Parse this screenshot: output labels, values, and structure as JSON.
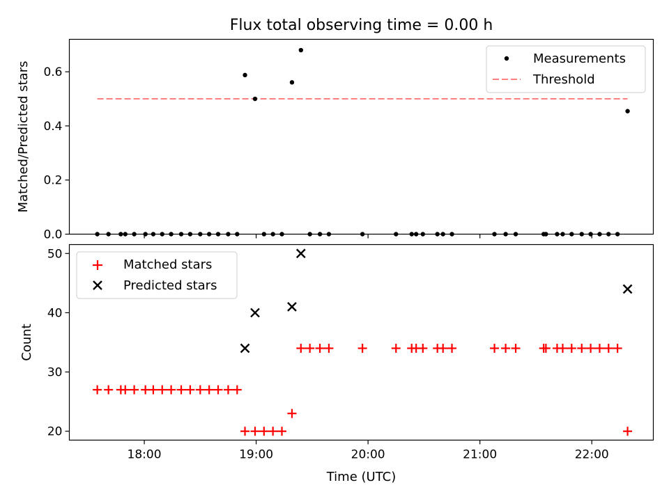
{
  "chart_data": [
    {
      "type": "scatter",
      "title": "Flux total observing time = 0.00 h",
      "ylabel": "Matched/Predicted stars",
      "xlabel": "",
      "xlim_hours": [
        17.33,
        22.55
      ],
      "ylim": [
        0.0,
        0.72
      ],
      "yticks": [
        0.0,
        0.2,
        0.4,
        0.6
      ],
      "ytick_labels": [
        "0.0",
        "0.2",
        "0.4",
        "0.6"
      ],
      "legend_position": "top-right",
      "series": [
        {
          "name": "Measurements",
          "kind": "scatter",
          "color": "#000000",
          "marker": "dot",
          "points": [
            [
              17.58,
              0
            ],
            [
              17.68,
              0
            ],
            [
              17.79,
              0
            ],
            [
              17.83,
              0
            ],
            [
              17.91,
              0
            ],
            [
              18.01,
              0
            ],
            [
              18.08,
              0
            ],
            [
              18.16,
              0
            ],
            [
              18.24,
              0
            ],
            [
              18.33,
              0
            ],
            [
              18.41,
              0
            ],
            [
              18.5,
              0
            ],
            [
              18.58,
              0
            ],
            [
              18.66,
              0
            ],
            [
              18.75,
              0
            ],
            [
              18.83,
              0
            ],
            [
              18.9,
              0.588
            ],
            [
              18.99,
              0.5
            ],
            [
              19.07,
              0
            ],
            [
              19.15,
              0
            ],
            [
              19.23,
              0
            ],
            [
              19.32,
              0.561
            ],
            [
              19.4,
              0.68
            ],
            [
              19.48,
              0
            ],
            [
              19.57,
              0
            ],
            [
              19.65,
              0
            ],
            [
              19.95,
              0
            ],
            [
              20.25,
              0
            ],
            [
              20.39,
              0
            ],
            [
              20.43,
              0
            ],
            [
              20.49,
              0
            ],
            [
              20.62,
              0
            ],
            [
              20.67,
              0
            ],
            [
              20.75,
              0
            ],
            [
              21.13,
              0
            ],
            [
              21.23,
              0
            ],
            [
              21.32,
              0
            ],
            [
              21.57,
              0
            ],
            [
              21.59,
              0
            ],
            [
              21.69,
              0
            ],
            [
              21.74,
              0
            ],
            [
              21.82,
              0
            ],
            [
              21.91,
              0
            ],
            [
              21.99,
              0
            ],
            [
              22.07,
              0
            ],
            [
              22.15,
              0
            ],
            [
              22.23,
              0
            ],
            [
              22.32,
              0.4545
            ]
          ]
        },
        {
          "name": "Threshold",
          "kind": "line",
          "style": "dashed",
          "color": "#ff7f7f",
          "x": [
            17.58,
            22.32
          ],
          "y": [
            0.5,
            0.5
          ]
        }
      ]
    },
    {
      "type": "scatter",
      "title": "",
      "ylabel": "Count",
      "xlabel": "Time (UTC)",
      "xlim_hours": [
        17.33,
        22.55
      ],
      "ylim": [
        18.5,
        51.5
      ],
      "yticks": [
        20,
        30,
        40,
        50
      ],
      "ytick_labels": [
        "20",
        "30",
        "40",
        "50"
      ],
      "xticks_hours": [
        18,
        19,
        20,
        21,
        22
      ],
      "xtick_labels": [
        "18:00",
        "19:00",
        "20:00",
        "21:00",
        "22:00"
      ],
      "legend_position": "top-left",
      "series": [
        {
          "name": "Matched stars",
          "kind": "scatter",
          "color": "#ff0000",
          "marker": "plus",
          "points": [
            [
              17.58,
              27
            ],
            [
              17.68,
              27
            ],
            [
              17.79,
              27
            ],
            [
              17.83,
              27
            ],
            [
              17.91,
              27
            ],
            [
              18.01,
              27
            ],
            [
              18.08,
              27
            ],
            [
              18.16,
              27
            ],
            [
              18.24,
              27
            ],
            [
              18.33,
              27
            ],
            [
              18.41,
              27
            ],
            [
              18.5,
              27
            ],
            [
              18.58,
              27
            ],
            [
              18.66,
              27
            ],
            [
              18.75,
              27
            ],
            [
              18.83,
              27
            ],
            [
              18.9,
              20
            ],
            [
              18.99,
              20
            ],
            [
              19.07,
              20
            ],
            [
              19.15,
              20
            ],
            [
              19.23,
              20
            ],
            [
              19.32,
              23
            ],
            [
              19.4,
              34
            ],
            [
              19.48,
              34
            ],
            [
              19.57,
              34
            ],
            [
              19.65,
              34
            ],
            [
              19.95,
              34
            ],
            [
              20.25,
              34
            ],
            [
              20.39,
              34
            ],
            [
              20.43,
              34
            ],
            [
              20.49,
              34
            ],
            [
              20.62,
              34
            ],
            [
              20.67,
              34
            ],
            [
              20.75,
              34
            ],
            [
              21.13,
              34
            ],
            [
              21.23,
              34
            ],
            [
              21.32,
              34
            ],
            [
              21.57,
              34
            ],
            [
              21.59,
              34
            ],
            [
              21.69,
              34
            ],
            [
              21.74,
              34
            ],
            [
              21.82,
              34
            ],
            [
              21.91,
              34
            ],
            [
              21.99,
              34
            ],
            [
              22.07,
              34
            ],
            [
              22.15,
              34
            ],
            [
              22.23,
              34
            ],
            [
              22.32,
              20
            ]
          ]
        },
        {
          "name": "Predicted stars",
          "kind": "scatter",
          "color": "#000000",
          "marker": "x",
          "points": [
            [
              18.9,
              34
            ],
            [
              18.99,
              40
            ],
            [
              19.32,
              41
            ],
            [
              19.4,
              50
            ],
            [
              22.32,
              44
            ]
          ]
        }
      ]
    }
  ]
}
